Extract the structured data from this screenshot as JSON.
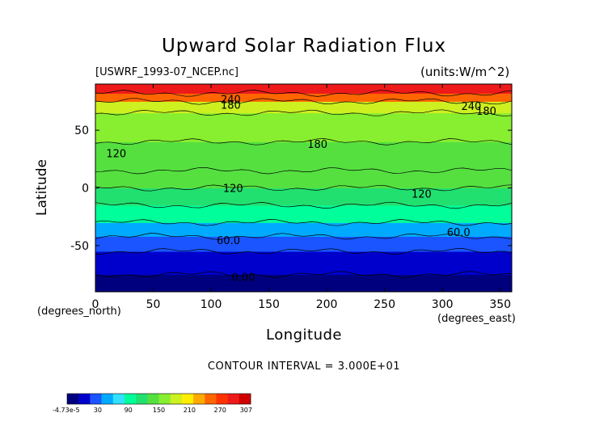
{
  "title": "Upward Solar Radiation Flux",
  "file_label": "[USWRF_1993-07_NCEP.nc]",
  "units_label": "(units:W/m^2)",
  "xlabel": "Longitude",
  "ylabel": "Latitude",
  "x_unit_note": "(degrees_east)",
  "y_unit_note": "(degrees_north)",
  "contour_interval_text": "CONTOUR INTERVAL = 3.000E+01",
  "chart_data": {
    "type": "heatmap",
    "title": "Upward Solar Radiation Flux",
    "xlabel": "Longitude",
    "ylabel": "Latitude",
    "xlim": [
      0,
      360
    ],
    "ylim": [
      -90,
      90
    ],
    "x_ticks": [
      0,
      50,
      100,
      150,
      200,
      250,
      300,
      350
    ],
    "y_ticks": [
      -50,
      0,
      50
    ],
    "contour_labels": [
      {
        "text": "240",
        "lon": 117,
        "lat": 77
      },
      {
        "text": "180",
        "lon": 117,
        "lat": 72
      },
      {
        "text": "240",
        "lon": 325,
        "lat": 71
      },
      {
        "text": "180",
        "lon": 338,
        "lat": 67
      },
      {
        "text": "120",
        "lon": 18,
        "lat": 30
      },
      {
        "text": "180",
        "lon": 192,
        "lat": 38
      },
      {
        "text": "120",
        "lon": 119,
        "lat": 0
      },
      {
        "text": "120",
        "lon": 282,
        "lat": -5
      },
      {
        "text": "60.0",
        "lon": 115,
        "lat": -45
      },
      {
        "text": "60.0",
        "lon": 314,
        "lat": -38
      },
      {
        "text": "0.00",
        "lon": 128,
        "lat": -77
      }
    ],
    "zonal_bands": [
      {
        "lat_from": -90,
        "lat_to": -75,
        "value": 0
      },
      {
        "lat_from": -75,
        "lat_to": -55,
        "value": 20
      },
      {
        "lat_from": -55,
        "lat_to": -42,
        "value": 45
      },
      {
        "lat_from": -42,
        "lat_to": -30,
        "value": 75
      },
      {
        "lat_from": -30,
        "lat_to": -15,
        "value": 100
      },
      {
        "lat_from": -15,
        "lat_to": 0,
        "value": 120
      },
      {
        "lat_from": 0,
        "lat_to": 15,
        "value": 140
      },
      {
        "lat_from": 15,
        "lat_to": 40,
        "value": 150
      },
      {
        "lat_from": 40,
        "lat_to": 65,
        "value": 160
      },
      {
        "lat_from": 65,
        "lat_to": 75,
        "value": 185
      },
      {
        "lat_from": 75,
        "lat_to": 82,
        "value": 235
      },
      {
        "lat_from": 82,
        "lat_to": 90,
        "value": 270
      }
    ],
    "colorbar": {
      "min": -4.73e-05,
      "max": 307,
      "tick_labels": [
        "-4.73e-5",
        "30",
        "90",
        "150",
        "210",
        "270",
        "307"
      ],
      "colors": [
        "#00007e",
        "#0000cc",
        "#1a55ff",
        "#00aaff",
        "#33e0ff",
        "#00ff9a",
        "#22e070",
        "#55e040",
        "#88ee30",
        "#ccf020",
        "#ffee00",
        "#ffaa00",
        "#ff6600",
        "#ff3300",
        "#ee1a1a",
        "#d00000"
      ]
    },
    "legend_position": "bottom-left"
  },
  "colors": {
    "background": "#ffffff",
    "text": "#000000"
  }
}
